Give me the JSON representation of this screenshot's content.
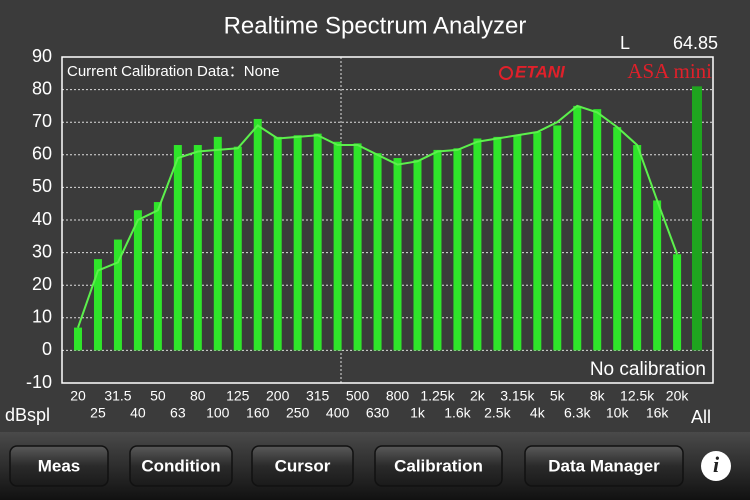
{
  "header": {
    "channel": "L",
    "level": 64.85
  },
  "chart_data": {
    "type": "bar",
    "title": "Realtime Spectrum Analyzer",
    "calibration_note": "Current Calibration Data：None",
    "brand": "ETANI",
    "model": "ASA mini",
    "status": "No calibration",
    "ylabel": "dBspl",
    "categories": [
      "20",
      "25",
      "31.5",
      "40",
      "50",
      "63",
      "80",
      "100",
      "125",
      "160",
      "200",
      "250",
      "315",
      "400",
      "500",
      "630",
      "800",
      "1k",
      "1.25k",
      "1.6k",
      "2k",
      "2.5k",
      "3.15k",
      "4k",
      "5k",
      "6.3k",
      "8k",
      "10k",
      "12.5k",
      "16k",
      "20k"
    ],
    "series": [
      {
        "type": "bar",
        "color": "#2fe52a",
        "values": [
          7,
          28,
          34,
          43,
          45.5,
          63,
          63,
          65.5,
          62.5,
          71,
          65.5,
          66,
          66.5,
          64,
          63.5,
          60.5,
          59,
          58.5,
          61.5,
          62,
          65,
          65.5,
          66,
          67,
          69,
          75,
          74,
          68.5,
          63,
          46,
          29.5
        ]
      },
      {
        "type": "line",
        "color": "#5cf04c",
        "values": [
          7,
          24.5,
          27,
          40,
          43,
          59,
          61,
          61.5,
          62,
          69,
          65,
          65.5,
          66,
          63,
          63,
          60,
          57,
          58,
          61,
          61.5,
          64,
          65,
          66,
          67,
          70,
          75,
          73,
          68.5,
          63,
          46,
          29.5
        ]
      }
    ],
    "total": {
      "label": "All",
      "value": 81,
      "color": "#1fa51f"
    },
    "ylim": [
      -10,
      90
    ],
    "yticks": [
      -10,
      0,
      10,
      20,
      30,
      40,
      50,
      60,
      70,
      80,
      90
    ],
    "grid": true
  },
  "toolbar": {
    "buttons": [
      "Meas",
      "Condition",
      "Cursor",
      "Calibration",
      "Data Manager"
    ],
    "info": "i"
  }
}
